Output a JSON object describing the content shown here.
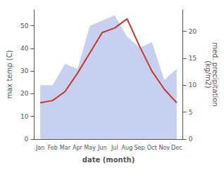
{
  "chart_data": {
    "type": "line",
    "xlabel": "date (month)",
    "ylabel": "max temp (C)",
    "y2label": "med. precipitation\n(kg/m2)",
    "categories": [
      "Jan",
      "Feb",
      "Mar",
      "Apr",
      "May",
      "Jun",
      "Jul",
      "Aug",
      "Sep",
      "Oct",
      "Nov",
      "Dec"
    ],
    "series": [
      {
        "type": "area",
        "axis": "y2",
        "color": "#c8d0f0",
        "values": [
          10,
          10,
          14,
          13,
          21,
          22,
          23,
          19,
          17,
          18,
          11,
          13
        ]
      },
      {
        "type": "line",
        "color": "#c0392b",
        "values": [
          16,
          17,
          21,
          29,
          38,
          47,
          49,
          53,
          41,
          30,
          22,
          16
        ]
      }
    ],
    "ylim": [
      0,
      57
    ],
    "yticks": [
      0,
      10,
      20,
      30,
      40,
      50
    ],
    "y2lim": [
      0,
      24
    ],
    "y2ticks": [
      0,
      5,
      10,
      15,
      20
    ],
    "grid": false
  }
}
